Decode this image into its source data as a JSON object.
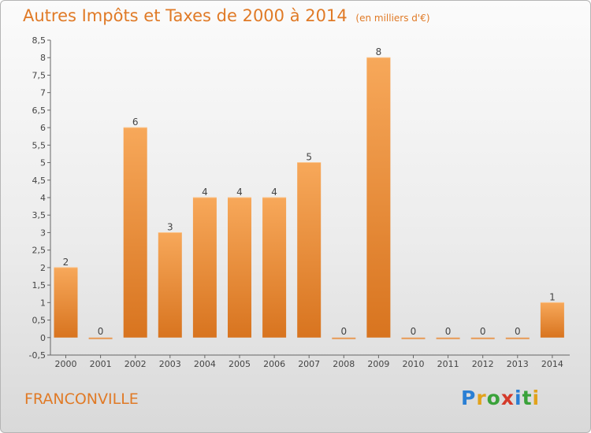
{
  "title": "Autres Impôts et Taxes de 2000 à 2014",
  "subtitle": "(en milliers d'€)",
  "place": "FRANCONVILLE",
  "logo": {
    "letters": [
      "P",
      "r",
      "o",
      "x",
      "i",
      "t",
      "i"
    ],
    "colors": [
      "#2a7fd4",
      "#e2a21b",
      "#3aa23a",
      "#d43a2a",
      "#2a7fd4",
      "#3aa23a",
      "#e2a21b"
    ]
  },
  "colors": {
    "bar_top": "#f7a85a",
    "bar_bottom": "#d8741f",
    "accent": "#e07a26"
  },
  "chart_data": {
    "type": "bar",
    "categories": [
      "2000",
      "2001",
      "2002",
      "2003",
      "2004",
      "2005",
      "2006",
      "2007",
      "2008",
      "2009",
      "2010",
      "2011",
      "2012",
      "2013",
      "2014"
    ],
    "values": [
      2,
      0,
      6,
      3,
      4,
      4,
      4,
      5,
      0,
      8,
      0,
      0,
      0,
      0,
      1
    ],
    "value_labels": [
      "2",
      "0",
      "6",
      "3",
      "4",
      "4",
      "4",
      "5",
      "0",
      "8",
      "0",
      "0",
      "0",
      "0",
      "1"
    ],
    "ylim": [
      -0.5,
      8.5
    ],
    "yticks": [
      -0.5,
      0,
      0.5,
      1,
      1.5,
      2,
      2.5,
      3,
      3.5,
      4,
      4.5,
      5,
      5.5,
      6,
      6.5,
      7,
      7.5,
      8,
      8.5
    ],
    "ytick_labels": [
      "-0,5",
      "0",
      "0,5",
      "1",
      "1,5",
      "2",
      "2,5",
      "3",
      "3,5",
      "4",
      "4,5",
      "5",
      "5,5",
      "6",
      "6,5",
      "7",
      "7,5",
      "8",
      "8,5"
    ],
    "grid": false,
    "legend": "none"
  }
}
